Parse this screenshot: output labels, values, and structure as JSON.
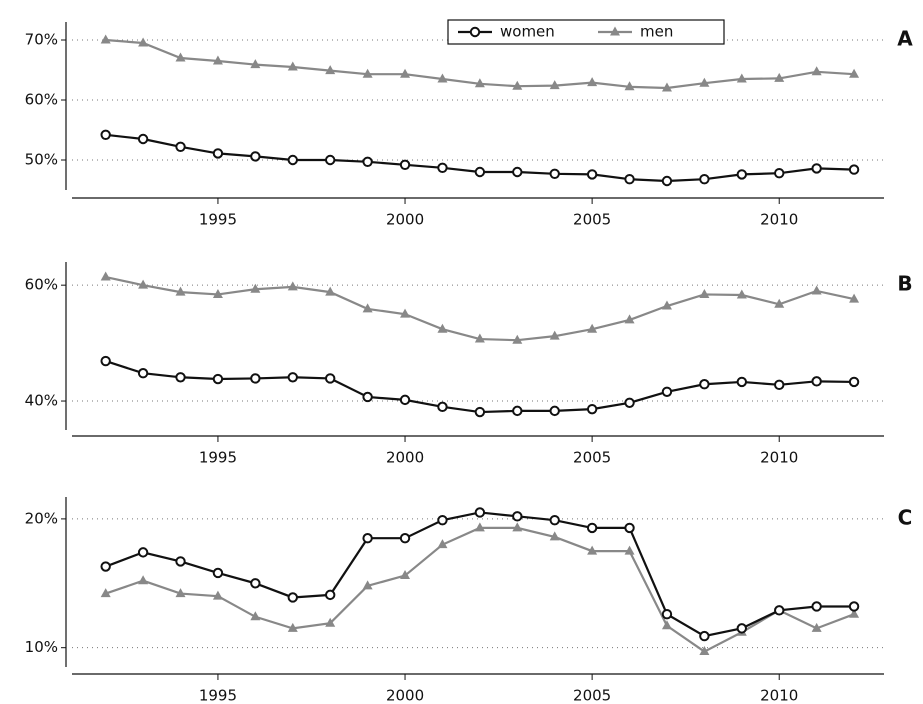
{
  "chart_data": [
    {
      "type": "line",
      "panel": "A",
      "legend": "top",
      "grid": true,
      "x": [
        1992,
        1993,
        1994,
        1995,
        1996,
        1997,
        1998,
        1999,
        2000,
        2001,
        2002,
        2003,
        2004,
        2005,
        2006,
        2007,
        2008,
        2009,
        2010,
        2011,
        2012
      ],
      "xlim": [
        1991.1,
        2012.8
      ],
      "xticks": [
        1995,
        2000,
        2005,
        2010
      ],
      "ylim": [
        45,
        73
      ],
      "yticks": [
        {
          "value": 50,
          "label": "50%"
        },
        {
          "value": 60,
          "label": "60%"
        },
        {
          "value": 70,
          "label": "70%"
        }
      ],
      "series": [
        {
          "name": "women",
          "color": "#111111",
          "marker": "circle",
          "values": [
            54.2,
            53.5,
            52.2,
            51.1,
            50.6,
            50.0,
            50.0,
            49.7,
            49.2,
            48.7,
            48.0,
            48.0,
            47.7,
            47.6,
            46.8,
            46.5,
            46.8,
            47.6,
            47.8,
            48.6,
            48.4
          ]
        },
        {
          "name": "men",
          "color": "#888888",
          "marker": "triangle",
          "values": [
            70.0,
            69.5,
            67.0,
            66.5,
            65.9,
            65.5,
            64.9,
            64.3,
            64.3,
            63.5,
            62.7,
            62.3,
            62.4,
            62.9,
            62.2,
            62.0,
            62.8,
            63.5,
            63.6,
            64.7,
            64.3
          ]
        }
      ]
    },
    {
      "type": "line",
      "panel": "B",
      "grid": true,
      "x": [
        1992,
        1993,
        1994,
        1995,
        1996,
        1997,
        1998,
        1999,
        2000,
        2001,
        2002,
        2003,
        2004,
        2005,
        2006,
        2007,
        2008,
        2009,
        2010,
        2011,
        2012
      ],
      "xlim": [
        1991.1,
        2012.8
      ],
      "xticks": [
        1995,
        2000,
        2005,
        2010
      ],
      "ylim": [
        35,
        64
      ],
      "yticks": [
        {
          "value": 40,
          "label": "40%"
        },
        {
          "value": 60,
          "label": "60%"
        }
      ],
      "series": [
        {
          "name": "women",
          "color": "#111111",
          "marker": "circle",
          "values": [
            46.9,
            44.8,
            44.1,
            43.8,
            43.9,
            44.1,
            43.9,
            40.7,
            40.2,
            39.0,
            38.1,
            38.3,
            38.3,
            38.6,
            39.7,
            41.6,
            42.9,
            43.3,
            42.8,
            43.4,
            43.3
          ]
        },
        {
          "name": "men",
          "color": "#888888",
          "marker": "triangle",
          "values": [
            61.4,
            60.0,
            58.8,
            58.4,
            59.3,
            59.7,
            58.8,
            55.9,
            55.0,
            52.4,
            50.7,
            50.5,
            51.2,
            52.4,
            54.0,
            56.4,
            58.4,
            58.3,
            56.7,
            59.0,
            57.6
          ]
        }
      ]
    },
    {
      "type": "line",
      "panel": "C",
      "grid": true,
      "x": [
        1992,
        1993,
        1994,
        1995,
        1996,
        1997,
        1998,
        1999,
        2000,
        2001,
        2002,
        2003,
        2004,
        2005,
        2006,
        2007,
        2008,
        2009,
        2010,
        2011,
        2012
      ],
      "xlim": [
        1991.1,
        2012.8
      ],
      "xticks": [
        1995,
        2000,
        2005,
        2010
      ],
      "ylim": [
        8.5,
        21.7
      ],
      "yticks": [
        {
          "value": 10,
          "label": "10%"
        },
        {
          "value": 20,
          "label": "20%"
        }
      ],
      "series": [
        {
          "name": "women",
          "color": "#111111",
          "marker": "circle",
          "values": [
            16.3,
            17.4,
            16.7,
            15.8,
            15.0,
            13.9,
            14.1,
            18.5,
            18.5,
            19.9,
            20.5,
            20.2,
            19.9,
            19.3,
            19.3,
            12.6,
            10.9,
            11.5,
            12.9,
            13.2,
            13.2
          ]
        },
        {
          "name": "men",
          "color": "#888888",
          "marker": "triangle",
          "values": [
            14.2,
            15.2,
            14.2,
            14.0,
            12.4,
            11.5,
            11.9,
            14.8,
            15.6,
            18.0,
            19.3,
            19.3,
            18.6,
            17.5,
            17.5,
            11.7,
            9.7,
            11.2,
            12.9,
            11.5,
            12.6
          ]
        }
      ]
    }
  ]
}
